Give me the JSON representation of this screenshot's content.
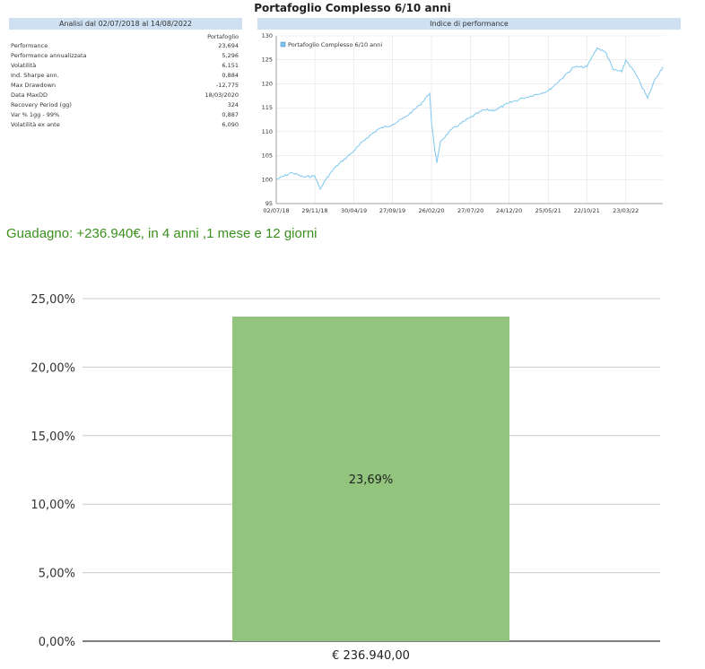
{
  "title": "Portafoglio Complesso 6/10 anni",
  "left_panel": {
    "header": "Analisi dal 02/07/2018 al 14/08/2022",
    "column_header": "Portafoglio",
    "rows": [
      {
        "label": "Performance",
        "value": "23,694"
      },
      {
        "label": "Performance annualizzata",
        "value": "5,296"
      },
      {
        "label": "Volatilità",
        "value": "6,151"
      },
      {
        "label": "Ind. Sharpe ann.",
        "value": "0,884"
      },
      {
        "label": "Max Drawdown",
        "value": "-12,775"
      },
      {
        "label": "Data MaxDD",
        "value": "18/03/2020"
      },
      {
        "label": "Recovery Period (gg)",
        "value": "324"
      },
      {
        "label": "Var % 1gg - 99%",
        "value": "0,887"
      },
      {
        "label": "Volatilità ex ante",
        "value": "6,090"
      }
    ]
  },
  "gain_text": "Guadagno: +236.940€, in 4 anni ,1 mese e 12 giorni",
  "chart_data": [
    {
      "type": "line",
      "title": "Indice di performance",
      "legend": "Portafoglio Complesso 6/10 anni",
      "legend_position": "top-left",
      "grid": true,
      "color": "#7ec8f0",
      "ylim": [
        95,
        130
      ],
      "yticks": [
        "95",
        "100",
        "105",
        "110",
        "115",
        "120",
        "125",
        "130"
      ],
      "xticks": [
        "02/07/18",
        "29/11/18",
        "30/04/19",
        "27/09/19",
        "26/02/20",
        "27/07/20",
        "24/12/20",
        "25/05/21",
        "22/10/21",
        "23/03/22"
      ],
      "x": [
        "2018-07-02",
        "2018-09-01",
        "2018-10-15",
        "2018-11-29",
        "2018-12-20",
        "2019-01-10",
        "2019-02-15",
        "2019-04-30",
        "2019-06-15",
        "2019-08-01",
        "2019-09-27",
        "2019-11-15",
        "2020-01-10",
        "2020-02-19",
        "2020-02-26",
        "2020-03-10",
        "2020-03-18",
        "2020-04-01",
        "2020-05-15",
        "2020-07-27",
        "2020-09-15",
        "2020-10-30",
        "2020-12-24",
        "2021-02-15",
        "2021-05-25",
        "2021-07-15",
        "2021-09-01",
        "2021-10-22",
        "2021-12-01",
        "2022-01-05",
        "2022-02-01",
        "2022-03-08",
        "2022-03-23",
        "2022-05-01",
        "2022-06-16",
        "2022-07-15",
        "2022-08-14"
      ],
      "values": [
        100.0,
        101.5,
        100.5,
        100.8,
        98.0,
        100.0,
        102.5,
        106.0,
        108.5,
        110.5,
        111.5,
        113.0,
        115.5,
        118.0,
        112.0,
        106.0,
        103.5,
        108.0,
        110.5,
        113.0,
        114.5,
        114.5,
        116.0,
        117.0,
        118.5,
        121.0,
        123.5,
        123.5,
        127.5,
        126.5,
        123.0,
        122.5,
        125.0,
        122.0,
        117.0,
        121.0,
        123.5
      ]
    },
    {
      "type": "bar",
      "categories": [
        "€ 236.940,00"
      ],
      "values": [
        23.69
      ],
      "data_labels": [
        "23,69%"
      ],
      "ylim": [
        0,
        25
      ],
      "yticks": [
        "0,00%",
        "5,00%",
        "10,00%",
        "15,00%",
        "20,00%",
        "25,00%"
      ],
      "grid": true,
      "color": "#93c47d"
    }
  ]
}
